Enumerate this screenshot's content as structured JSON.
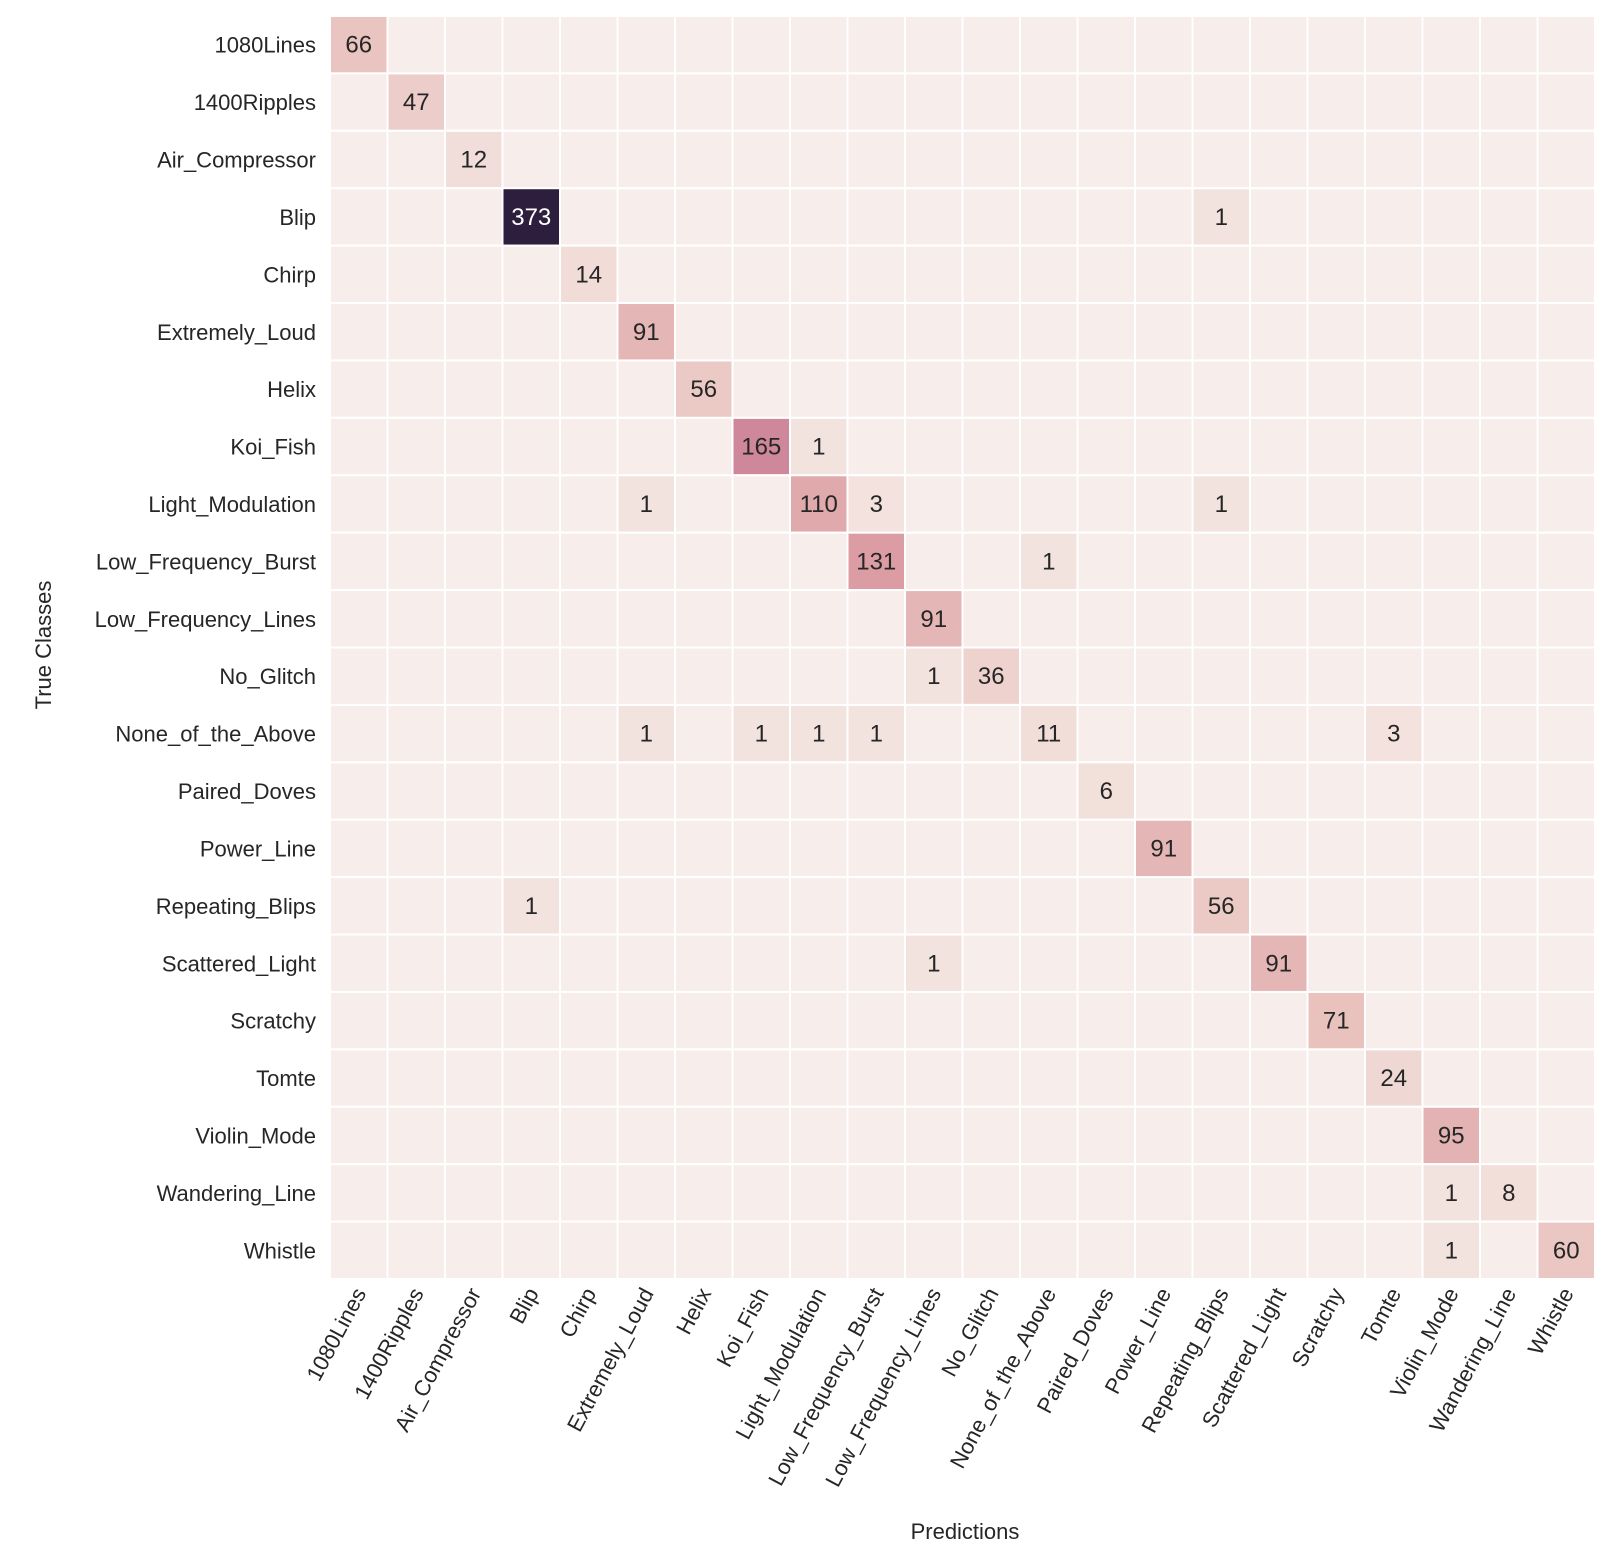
{
  "chart_data": {
    "type": "heatmap",
    "title": "",
    "xlabel": "Predictions",
    "ylabel": "True Classes",
    "grid": true,
    "legend": "none",
    "x_categories": [
      "1080Lines",
      "1400Ripples",
      "Air_Compressor",
      "Blip",
      "Chirp",
      "Extremely_Loud",
      "Helix",
      "Koi_Fish",
      "Light_Modulation",
      "Low_Frequency_Burst",
      "Low_Frequency_Lines",
      "No_Glitch",
      "None_of_the_Above",
      "Paired_Doves",
      "Power_Line",
      "Repeating_Blips",
      "Scattered_Light",
      "Scratchy",
      "Tomte",
      "Violin_Mode",
      "Wandering_Line",
      "Whistle"
    ],
    "y_categories": [
      "1080Lines",
      "1400Ripples",
      "Air_Compressor",
      "Blip",
      "Chirp",
      "Extremely_Loud",
      "Helix",
      "Koi_Fish",
      "Light_Modulation",
      "Low_Frequency_Burst",
      "Low_Frequency_Lines",
      "No_Glitch",
      "None_of_the_Above",
      "Paired_Doves",
      "Power_Line",
      "Repeating_Blips",
      "Scattered_Light",
      "Scratchy",
      "Tomte",
      "Violin_Mode",
      "Wandering_Line",
      "Whistle"
    ],
    "values": [
      [
        66,
        0,
        0,
        0,
        0,
        0,
        0,
        0,
        0,
        0,
        0,
        0,
        0,
        0,
        0,
        0,
        0,
        0,
        0,
        0,
        0,
        0
      ],
      [
        0,
        47,
        0,
        0,
        0,
        0,
        0,
        0,
        0,
        0,
        0,
        0,
        0,
        0,
        0,
        0,
        0,
        0,
        0,
        0,
        0,
        0
      ],
      [
        0,
        0,
        12,
        0,
        0,
        0,
        0,
        0,
        0,
        0,
        0,
        0,
        0,
        0,
        0,
        0,
        0,
        0,
        0,
        0,
        0,
        0
      ],
      [
        0,
        0,
        0,
        373,
        0,
        0,
        0,
        0,
        0,
        0,
        0,
        0,
        0,
        0,
        0,
        1,
        0,
        0,
        0,
        0,
        0,
        0
      ],
      [
        0,
        0,
        0,
        0,
        14,
        0,
        0,
        0,
        0,
        0,
        0,
        0,
        0,
        0,
        0,
        0,
        0,
        0,
        0,
        0,
        0,
        0
      ],
      [
        0,
        0,
        0,
        0,
        0,
        91,
        0,
        0,
        0,
        0,
        0,
        0,
        0,
        0,
        0,
        0,
        0,
        0,
        0,
        0,
        0,
        0
      ],
      [
        0,
        0,
        0,
        0,
        0,
        0,
        56,
        0,
        0,
        0,
        0,
        0,
        0,
        0,
        0,
        0,
        0,
        0,
        0,
        0,
        0,
        0
      ],
      [
        0,
        0,
        0,
        0,
        0,
        0,
        0,
        165,
        1,
        0,
        0,
        0,
        0,
        0,
        0,
        0,
        0,
        0,
        0,
        0,
        0,
        0
      ],
      [
        0,
        0,
        0,
        0,
        0,
        1,
        0,
        0,
        110,
        3,
        0,
        0,
        0,
        0,
        0,
        1,
        0,
        0,
        0,
        0,
        0,
        0
      ],
      [
        0,
        0,
        0,
        0,
        0,
        0,
        0,
        0,
        0,
        131,
        0,
        0,
        1,
        0,
        0,
        0,
        0,
        0,
        0,
        0,
        0,
        0
      ],
      [
        0,
        0,
        0,
        0,
        0,
        0,
        0,
        0,
        0,
        0,
        91,
        0,
        0,
        0,
        0,
        0,
        0,
        0,
        0,
        0,
        0,
        0
      ],
      [
        0,
        0,
        0,
        0,
        0,
        0,
        0,
        0,
        0,
        0,
        1,
        36,
        0,
        0,
        0,
        0,
        0,
        0,
        0,
        0,
        0,
        0
      ],
      [
        0,
        0,
        0,
        0,
        0,
        1,
        0,
        1,
        1,
        1,
        0,
        0,
        11,
        0,
        0,
        0,
        0,
        0,
        3,
        0,
        0,
        0
      ],
      [
        0,
        0,
        0,
        0,
        0,
        0,
        0,
        0,
        0,
        0,
        0,
        0,
        0,
        6,
        0,
        0,
        0,
        0,
        0,
        0,
        0,
        0
      ],
      [
        0,
        0,
        0,
        0,
        0,
        0,
        0,
        0,
        0,
        0,
        0,
        0,
        0,
        0,
        91,
        0,
        0,
        0,
        0,
        0,
        0,
        0
      ],
      [
        0,
        0,
        0,
        1,
        0,
        0,
        0,
        0,
        0,
        0,
        0,
        0,
        0,
        0,
        0,
        56,
        0,
        0,
        0,
        0,
        0,
        0
      ],
      [
        0,
        0,
        0,
        0,
        0,
        0,
        0,
        0,
        0,
        0,
        1,
        0,
        0,
        0,
        0,
        0,
        91,
        0,
        0,
        0,
        0,
        0
      ],
      [
        0,
        0,
        0,
        0,
        0,
        0,
        0,
        0,
        0,
        0,
        0,
        0,
        0,
        0,
        0,
        0,
        0,
        71,
        0,
        0,
        0,
        0
      ],
      [
        0,
        0,
        0,
        0,
        0,
        0,
        0,
        0,
        0,
        0,
        0,
        0,
        0,
        0,
        0,
        0,
        0,
        0,
        24,
        0,
        0,
        0
      ],
      [
        0,
        0,
        0,
        0,
        0,
        0,
        0,
        0,
        0,
        0,
        0,
        0,
        0,
        0,
        0,
        0,
        0,
        0,
        0,
        95,
        0,
        0
      ],
      [
        0,
        0,
        0,
        0,
        0,
        0,
        0,
        0,
        0,
        0,
        0,
        0,
        0,
        0,
        0,
        0,
        0,
        0,
        0,
        1,
        8,
        0
      ],
      [
        0,
        0,
        0,
        0,
        0,
        0,
        0,
        0,
        0,
        0,
        0,
        0,
        0,
        0,
        0,
        0,
        0,
        0,
        0,
        1,
        0,
        60
      ]
    ],
    "show_zero_labels": false,
    "colors": {
      "empty": "#f7eeeb",
      "low": "#f3e3de",
      "high": "#2d1e3e",
      "grid": "#ffffff",
      "text_dark": "#262626",
      "text_light": "#ffffff"
    }
  }
}
